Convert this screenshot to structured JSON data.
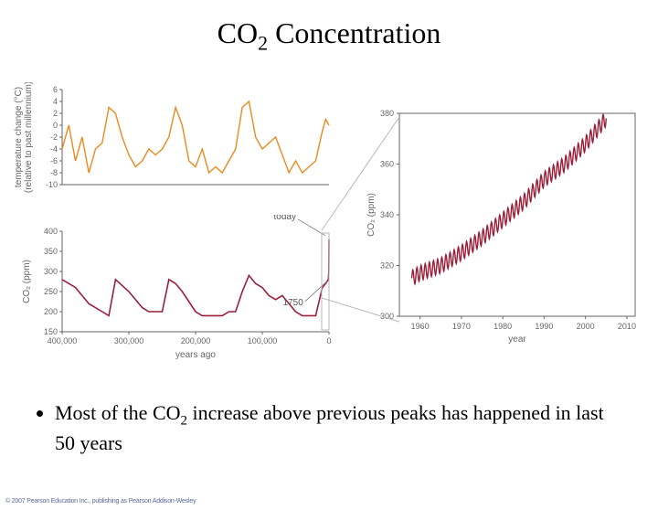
{
  "title_main": "CO",
  "title_sub": "2",
  "title_rest": " Concentration",
  "bullet_text_1": "Most of the CO",
  "bullet_sub": "2",
  "bullet_text_2": " increase above previous peaks has happened in last 50 years",
  "copyright": "© 2007 Pearson Education Inc., publishing as Pearson Addison-Wesley",
  "temp_chart": {
    "type": "line",
    "color": "#ec8a1f",
    "line_width": 1.4,
    "background_color": "#ffffff",
    "ylabel_line1": "temperature change (°C)",
    "ylabel_line2": "(relative to past millennium)",
    "ylim": [
      -10,
      6
    ],
    "ytick_step": 2,
    "xlim": [
      400000,
      0
    ],
    "values_x": [
      400000,
      390000,
      380000,
      370000,
      360000,
      350000,
      340000,
      330000,
      320000,
      310000,
      300000,
      290000,
      280000,
      270000,
      260000,
      250000,
      240000,
      230000,
      220000,
      210000,
      200000,
      190000,
      180000,
      170000,
      160000,
      150000,
      140000,
      130000,
      120000,
      110000,
      100000,
      90000,
      80000,
      70000,
      60000,
      50000,
      40000,
      30000,
      20000,
      10000,
      5000,
      0
    ],
    "values_y": [
      -4,
      0,
      -6,
      -2,
      -8,
      -4,
      -3,
      3,
      2,
      -2,
      -5,
      -7,
      -6,
      -4,
      -5,
      -4,
      -2,
      3,
      0,
      -6,
      -7,
      -4,
      -8,
      -7,
      -8,
      -6,
      -4,
      3,
      4,
      -2,
      -4,
      -3,
      -2,
      -5,
      -8,
      -6,
      -8,
      -7,
      -6,
      -1,
      1,
      0
    ]
  },
  "co2_hist_chart": {
    "type": "line",
    "color": "#9c1f3a",
    "line_width": 1.6,
    "background_color": "#ffffff",
    "ylabel": "CO₂ (ppm)",
    "xlabel": "years ago",
    "ylim": [
      150,
      400
    ],
    "ytick_step": 50,
    "xlim": [
      400000,
      0
    ],
    "xtick_labels": [
      "400,000",
      "300,000",
      "200,000",
      "100,000",
      "0"
    ],
    "xtick_vals": [
      400000,
      300000,
      200000,
      100000,
      0
    ],
    "annot_today": "today",
    "annot_1750": "1750",
    "values_x": [
      400000,
      380000,
      360000,
      340000,
      330000,
      320000,
      300000,
      280000,
      270000,
      250000,
      240000,
      230000,
      220000,
      200000,
      190000,
      180000,
      160000,
      150000,
      140000,
      130000,
      120000,
      110000,
      100000,
      90000,
      80000,
      70000,
      60000,
      50000,
      40000,
      30000,
      20000,
      10000,
      5000,
      1000,
      250,
      0
    ],
    "values_y": [
      280,
      260,
      220,
      200,
      190,
      280,
      250,
      210,
      200,
      200,
      280,
      270,
      250,
      200,
      190,
      190,
      190,
      200,
      200,
      250,
      290,
      270,
      260,
      240,
      230,
      240,
      220,
      200,
      190,
      190,
      190,
      260,
      270,
      280,
      300,
      380
    ]
  },
  "co2_recent_chart": {
    "type": "line",
    "color": "#9c1f3a",
    "line_width": 1.4,
    "background_color": "#ffffff",
    "ylabel": "CO₂ (ppm)",
    "xlabel": "year",
    "ylim": [
      300,
      380
    ],
    "ytick_step": 20,
    "xlim": [
      1955,
      2012
    ],
    "xtick_vals": [
      1960,
      1970,
      1980,
      1990,
      2000,
      2010
    ],
    "seasonal_amp": 3.0,
    "values_x": [
      1958,
      1960,
      1965,
      1970,
      1975,
      1980,
      1985,
      1990,
      1995,
      2000,
      2003,
      2005
    ],
    "values_y": [
      315,
      317,
      320,
      325,
      331,
      338,
      345,
      354,
      360,
      368,
      374,
      378
    ]
  },
  "axis_color": "#666666",
  "tick_font_size": 9,
  "label_font_size": 10
}
